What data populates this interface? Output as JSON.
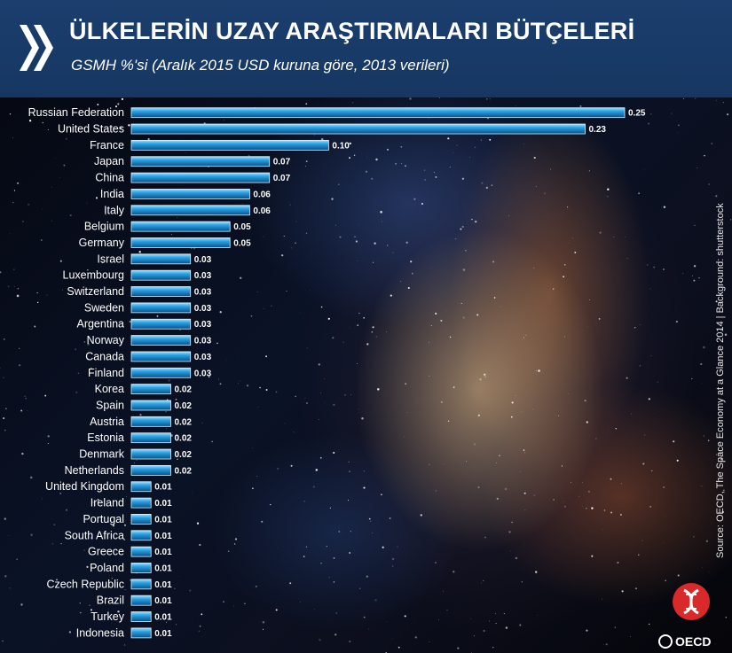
{
  "header": {
    "title": "ÜLKELERİN UZAY ARAŞTIRMALARI BÜTÇELERİ",
    "subtitle": "GSMH %'si (Aralık 2015 USD kuruna göre, 2013 verileri)"
  },
  "source": "Source: OECD, The Space Economy at a Glance 2014 | Background: shutterstock",
  "oecd_label": "OECD",
  "colors": {
    "header": "#1b3e6e",
    "bar_light": "#7fd3ff",
    "bar_mid": "#1c8fd2",
    "bar_dark": "#0a4f86",
    "label": "#ffffff"
  },
  "chart_data": {
    "type": "bar",
    "orientation": "horizontal",
    "title": "ÜLKELERİN UZAY ARAŞTIRMALARI BÜTÇELERİ",
    "subtitle": "GSMH %'si (Aralık 2015 USD kuruna göre, 2013 verileri)",
    "xlim": [
      0,
      0.25
    ],
    "grid": false,
    "categories": [
      "Russian Federation",
      "United States",
      "France",
      "Japan",
      "China",
      "India",
      "Italy",
      "Belgium",
      "Germany",
      "Israel",
      "Luxembourg",
      "Switzerland",
      "Sweden",
      "Argentina",
      "Norway",
      "Canada",
      "Finland",
      "Korea",
      "Spain",
      "Austria",
      "Estonia",
      "Denmark",
      "Netherlands",
      "United Kingdom",
      "Ireland",
      "Portugal",
      "South Africa",
      "Greece",
      "Poland",
      "Czech Republic",
      "Brazil",
      "Turkey",
      "Indonesia"
    ],
    "values": [
      0.25,
      0.23,
      0.1,
      0.07,
      0.07,
      0.06,
      0.06,
      0.05,
      0.05,
      0.03,
      0.03,
      0.03,
      0.03,
      0.03,
      0.03,
      0.03,
      0.03,
      0.02,
      0.02,
      0.02,
      0.02,
      0.02,
      0.02,
      0.01,
      0.01,
      0.01,
      0.01,
      0.01,
      0.01,
      0.01,
      0.01,
      0.01,
      0.01
    ],
    "value_labels": [
      "0.25",
      "0.23",
      "0.10",
      "0.07",
      "0.07",
      "0.06",
      "0.06",
      "0.05",
      "0.05",
      "0.03",
      "0.03",
      "0.03",
      "0.03",
      "0.03",
      "0.03",
      "0.03",
      "0.03",
      "0.02",
      "0.02",
      "0.02",
      "0.02",
      "0.02",
      "0.02",
      "0.01",
      "0.01",
      "0.01",
      "0.01",
      "0.01",
      "0.01",
      "0.01",
      "0.01",
      "0.01",
      "0.01"
    ]
  }
}
